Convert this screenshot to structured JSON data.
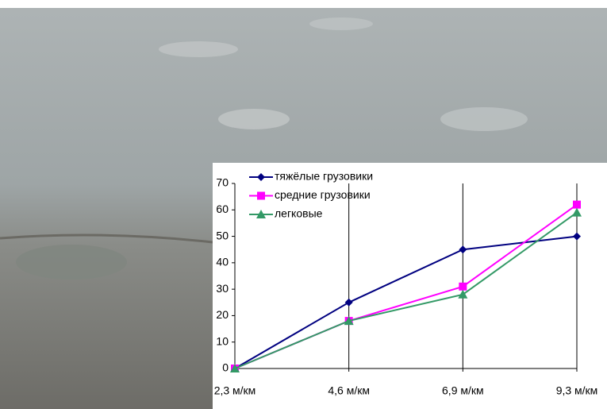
{
  "chart_data": {
    "type": "line",
    "categories": [
      "2,3 м/км",
      "4,6 м/км",
      "6,9 м/км",
      "9,3 м/км"
    ],
    "series": [
      {
        "name": "тяжёлые грузовики",
        "color": "#000080",
        "marker": "diamond",
        "values": [
          0,
          25,
          45,
          50
        ]
      },
      {
        "name": "средние грузовики",
        "color": "#ff00ff",
        "marker": "square",
        "values": [
          0,
          18,
          31,
          62
        ]
      },
      {
        "name": "легковые",
        "color": "#339966",
        "marker": "triangle",
        "values": [
          0,
          18,
          28,
          59
        ]
      }
    ],
    "ylim": [
      0,
      70
    ],
    "yticks": [
      0,
      10,
      20,
      30,
      40,
      50,
      60,
      70
    ],
    "grid": "x",
    "legend": "top-left"
  }
}
